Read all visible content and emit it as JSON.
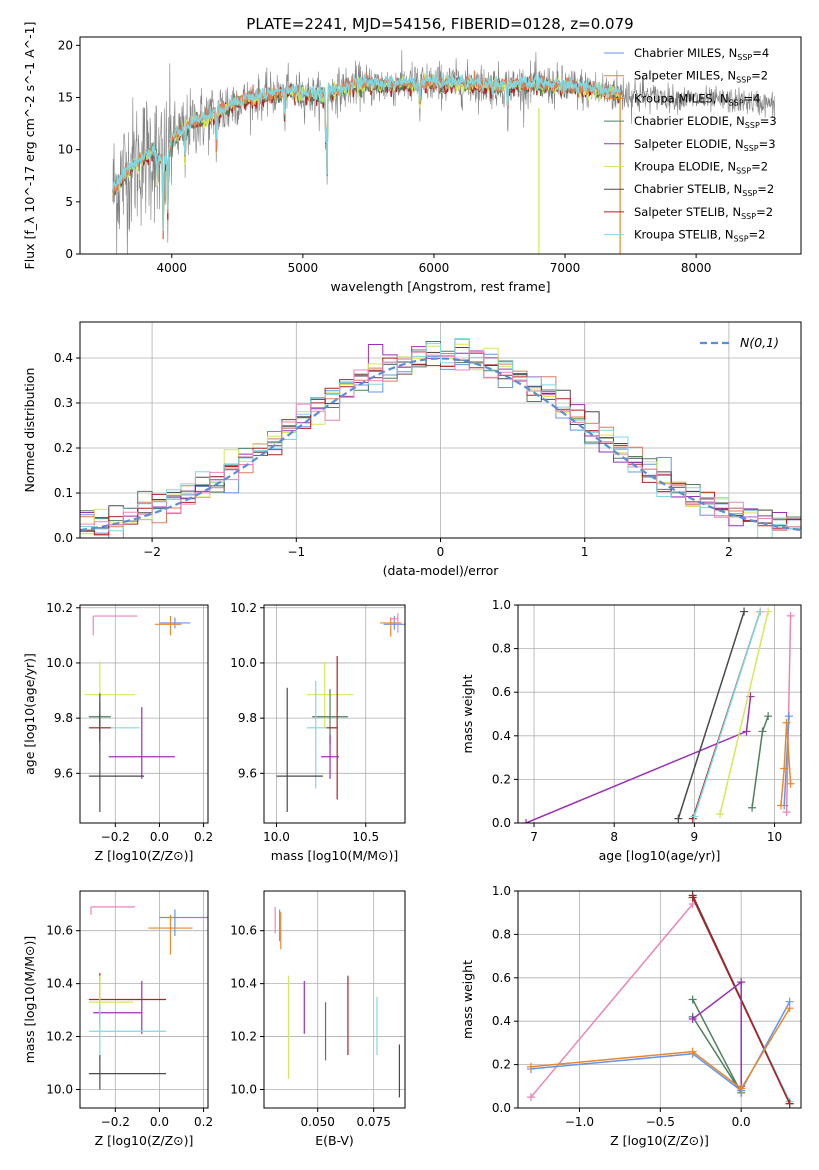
{
  "figure_title": "PLATE=2241, MJD=54156, FIBERID=0128, z=0.079",
  "colors": {
    "Chabrier MILES": "#6495ed",
    "Salpeter MILES": "#e07b5a",
    "Kroupa MILES": "#e8882a",
    "Chabrier ELODIE": "#4f7f5f",
    "Salpeter ELODIE": "#9b30b5",
    "Kroupa ELODIE": "#d4e85a",
    "Chabrier STELIB": "#4a4a4a",
    "Salpeter STELIB": "#b22222",
    "Kroupa STELIB": "#7fd8e0",
    "Pink": "#e986b8",
    "Data": "#808080"
  },
  "chart_data": [
    {
      "id": "spectrum",
      "type": "line",
      "title": "PLATE=2241, MJD=54156, FIBERID=0128, z=0.079",
      "xlabel": "wavelength [Angstrom, rest frame]",
      "ylabel": "Flux [f_λ 10^-17 erg cm^-2 s^-1 A^-1]",
      "xlim": [
        3300,
        8800
      ],
      "ylim": [
        0,
        20.8
      ],
      "xticks": [
        4000,
        5000,
        6000,
        7000,
        8000
      ],
      "yticks": [
        0,
        5,
        10,
        15,
        20
      ],
      "grid": false,
      "legend_position": "right",
      "legend": [
        {
          "name": "Chabrier MILES",
          "label": "Chabrier MILES, N",
          "sub": "SSP",
          "suffix": "=4"
        },
        {
          "name": "Salpeter MILES",
          "label": "Salpeter MILES, N",
          "sub": "SSP",
          "suffix": "=2"
        },
        {
          "name": "Kroupa MILES",
          "label": "Kroupa MILES, N",
          "sub": "SSP",
          "suffix": "=4"
        },
        {
          "name": "Chabrier ELODIE",
          "label": "Chabrier ELODIE, N",
          "sub": "SSP",
          "suffix": "=3"
        },
        {
          "name": "Salpeter ELODIE",
          "label": "Salpeter ELODIE, N",
          "sub": "SSP",
          "suffix": "=3"
        },
        {
          "name": "Kroupa ELODIE",
          "label": "Kroupa ELODIE, N",
          "sub": "SSP",
          "suffix": "=2"
        },
        {
          "name": "Chabrier STELIB",
          "label": "Chabrier STELIB, N",
          "sub": "SSP",
          "suffix": "=2"
        },
        {
          "name": "Salpeter STELIB",
          "label": "Salpeter STELIB, N",
          "sub": "SSP",
          "suffix": "=2"
        },
        {
          "name": "Kroupa STELIB",
          "label": "Kroupa STELIB, N",
          "sub": "SSP",
          "suffix": "=2"
        }
      ],
      "continuum": [
        [
          3550,
          6
        ],
        [
          3700,
          8.5
        ],
        [
          3850,
          9.8
        ],
        [
          3950,
          8.6
        ],
        [
          4000,
          11
        ],
        [
          4150,
          12.5
        ],
        [
          4300,
          13.2
        ],
        [
          4500,
          14.6
        ],
        [
          4700,
          15.1
        ],
        [
          4900,
          15.6
        ],
        [
          5100,
          15.1
        ],
        [
          5200,
          15.4
        ],
        [
          5400,
          16.2
        ],
        [
          5600,
          16.2
        ],
        [
          5800,
          16.3
        ],
        [
          6000,
          16.4
        ],
        [
          6200,
          16.3
        ],
        [
          6500,
          16.1
        ],
        [
          6800,
          16.2
        ],
        [
          7000,
          16
        ],
        [
          7300,
          15.6
        ],
        [
          7600,
          15.2
        ],
        [
          8000,
          14.8
        ],
        [
          8400,
          14.6
        ],
        [
          8600,
          14.3
        ]
      ],
      "data_range": [
        3550,
        8600
      ],
      "model_range": [
        3550,
        7420
      ]
    },
    {
      "id": "residuals",
      "type": "histogram",
      "xlabel": "(data-model)/error",
      "ylabel": "Normed distribution",
      "xlim": [
        -2.5,
        2.5
      ],
      "ylim": [
        0,
        0.48
      ],
      "xticks": [
        -2,
        -1,
        0,
        1,
        2
      ],
      "yticks": [
        0,
        0.1,
        0.2,
        0.3,
        0.4
      ],
      "grid": true,
      "legend_position": "top-right",
      "reference_curve": "N(0,1)",
      "bin_width": 0.1
    },
    {
      "id": "age_vs_z",
      "type": "errorbar",
      "xlabel": "Z [log10(Z/Z⊙)]",
      "ylabel": "age [log10(age/yr)]",
      "xlim": [
        -0.36,
        0.22
      ],
      "ylim": [
        9.42,
        10.21
      ],
      "xticks": [
        -0.2,
        0.0,
        0.2
      ],
      "yticks": [
        9.6,
        9.8,
        10.0,
        10.2
      ],
      "grid": true,
      "points": [
        {
          "model": "Chabrier MILES",
          "x": 0.07,
          "y": 10.145,
          "xerr": [
            0.07,
            0.07
          ],
          "yerr": [
            0.02,
            0.02
          ]
        },
        {
          "model": "Kroupa MILES",
          "x": 0.05,
          "y": 10.14,
          "xerr": [
            0.07,
            0.05
          ],
          "yerr": [
            0.04,
            0.03
          ]
        },
        {
          "model": "Pink",
          "x": -0.3,
          "y": 10.17,
          "xerr": [
            0,
            0.2
          ],
          "yerr": [
            0.07,
            0
          ]
        },
        {
          "model": "Kroupa ELODIE",
          "x": -0.27,
          "y": 9.885,
          "xerr": [
            0.07,
            0.16
          ],
          "yerr": [
            0.12,
            0.12
          ]
        },
        {
          "model": "Chabrier ELODIE",
          "x": -0.27,
          "y": 9.805,
          "xerr": [
            0.05,
            0.05
          ],
          "yerr": [
            0.05,
            0.05
          ]
        },
        {
          "model": "Kroupa STELIB",
          "x": -0.27,
          "y": 9.765,
          "xerr": [
            0.05,
            0.18
          ],
          "yerr": [
            0.05,
            0.05
          ]
        },
        {
          "model": "Salpeter STELIB",
          "x": -0.27,
          "y": 9.765,
          "xerr": [
            0.05,
            0.05
          ],
          "yerr": [
            0.05,
            0.05
          ]
        },
        {
          "model": "Salpeter ELODIE",
          "x": -0.08,
          "y": 9.66,
          "xerr": [
            0.15,
            0.15
          ],
          "yerr": [
            0.08,
            0.18
          ]
        },
        {
          "model": "Chabrier STELIB",
          "x": -0.27,
          "y": 9.59,
          "xerr": [
            0.05,
            0.2
          ],
          "yerr": [
            0.13,
            0.3
          ]
        }
      ]
    },
    {
      "id": "age_vs_mass",
      "type": "errorbar",
      "xlabel": "mass [log10(M/M⊙)]",
      "ylabel": "",
      "xlim": [
        9.93,
        10.72
      ],
      "ylim": [
        9.42,
        10.21
      ],
      "xticks": [
        10.0,
        10.5
      ],
      "yticks": [
        9.6,
        9.8,
        10.0,
        10.2
      ],
      "grid": true,
      "points": [
        {
          "model": "Chabrier MILES",
          "x": 10.66,
          "y": 10.14,
          "xerr": [
            0.06,
            0.06
          ],
          "yerr": [
            0.02,
            0.03
          ]
        },
        {
          "model": "Kroupa MILES",
          "x": 10.64,
          "y": 10.145,
          "xerr": [
            0.06,
            0.06
          ],
          "yerr": [
            0.05,
            0.02
          ]
        },
        {
          "model": "Pink",
          "x": 10.68,
          "y": 10.16,
          "xerr": [
            0.04,
            0.0
          ],
          "yerr": [
            0.05,
            0.02
          ]
        },
        {
          "model": "Kroupa ELODIE",
          "x": 10.27,
          "y": 9.885,
          "xerr": [
            0.1,
            0.16
          ],
          "yerr": [
            0.12,
            0.12
          ]
        },
        {
          "model": "Chabrier ELODIE",
          "x": 10.3,
          "y": 9.805,
          "xerr": [
            0.1,
            0.1
          ],
          "yerr": [
            0.1,
            0.1
          ]
        },
        {
          "model": "Kroupa STELIB",
          "x": 10.22,
          "y": 9.765,
          "xerr": [
            0.05,
            0.11
          ],
          "yerr": [
            0.22,
            0.17
          ]
        },
        {
          "model": "Salpeter STELIB",
          "x": 10.34,
          "y": 9.765,
          "xerr": [
            0.06,
            0.0
          ],
          "yerr": [
            0.26,
            0.26
          ]
        },
        {
          "model": "Salpeter ELODIE",
          "x": 10.3,
          "y": 9.66,
          "xerr": [
            0.05,
            0.05
          ],
          "yerr": [
            0.08,
            0.08
          ]
        },
        {
          "model": "Chabrier STELIB",
          "x": 10.06,
          "y": 9.59,
          "xerr": [
            0.06,
            0.2
          ],
          "yerr": [
            0.13,
            0.32
          ]
        }
      ]
    },
    {
      "id": "mass_weight_vs_age",
      "type": "line",
      "xlabel": "age [log10(age/yr)]",
      "ylabel": "mass weight",
      "xlim": [
        6.8,
        10.33
      ],
      "ylim": [
        0,
        1.0
      ],
      "xticks": [
        7,
        8,
        9,
        10
      ],
      "yticks": [
        0.0,
        0.2,
        0.4,
        0.6,
        0.8,
        1.0
      ],
      "grid": true,
      "series": [
        {
          "model": "Salpeter ELODIE",
          "points": [
            [
              6.9,
              0.0
            ],
            [
              9.65,
              0.42
            ],
            [
              9.7,
              0.58
            ]
          ]
        },
        {
          "model": "Chabrier STELIB",
          "points": [
            [
              8.8,
              0.02
            ],
            [
              9.62,
              0.97
            ]
          ]
        },
        {
          "model": "Salpeter STELIB",
          "points": [
            [
              8.98,
              0.02
            ],
            [
              9.82,
              0.97
            ]
          ]
        },
        {
          "model": "Kroupa STELIB",
          "points": [
            [
              9.0,
              0.03
            ],
            [
              9.82,
              0.97
            ]
          ]
        },
        {
          "model": "Kroupa ELODIE",
          "points": [
            [
              9.32,
              0.04
            ],
            [
              9.92,
              0.97
            ]
          ]
        },
        {
          "model": "Chabrier ELODIE",
          "points": [
            [
              9.72,
              0.07
            ],
            [
              9.85,
              0.42
            ],
            [
              9.92,
              0.49
            ]
          ]
        },
        {
          "model": "Pink",
          "points": [
            [
              10.15,
              0.05
            ],
            [
              10.2,
              0.95
            ]
          ]
        },
        {
          "model": "Chabrier MILES",
          "points": [
            [
              10.12,
              0.08
            ],
            [
              10.18,
              0.49
            ]
          ]
        },
        {
          "model": "Kroupa MILES",
          "points": [
            [
              10.08,
              0.08
            ],
            [
              10.12,
              0.25
            ],
            [
              10.15,
              0.46
            ],
            [
              10.2,
              0.18
            ]
          ]
        }
      ]
    },
    {
      "id": "mass_vs_z",
      "type": "errorbar",
      "xlabel": "Z [log10(Z/Z⊙)]",
      "ylabel": "mass [log10(M/M⊙)]",
      "xlim": [
        -0.36,
        0.22
      ],
      "ylim": [
        9.93,
        10.75
      ],
      "xticks": [
        -0.2,
        0.0,
        0.2
      ],
      "yticks": [
        10.0,
        10.2,
        10.4,
        10.6
      ],
      "grid": true,
      "points": [
        {
          "model": "Pink",
          "x": -0.31,
          "y": 10.69,
          "xerr": [
            0.0,
            0.2
          ],
          "yerr": [
            0.03,
            0.0
          ]
        },
        {
          "model": "Chabrier MILES",
          "x": 0.07,
          "y": 10.65,
          "xerr": [
            0.07,
            0.15
          ],
          "yerr": [
            0.07,
            0.03
          ]
        },
        {
          "model": "Kroupa MILES",
          "x": 0.05,
          "y": 10.61,
          "xerr": [
            0.1,
            0.1
          ],
          "yerr": [
            0.1,
            0.05
          ]
        },
        {
          "model": "Salpeter ELODIE",
          "x": -0.08,
          "y": 10.29,
          "xerr": [
            0.22,
            0.0
          ],
          "yerr": [
            0.08,
            0.12
          ]
        },
        {
          "model": "Salpeter STELIB",
          "x": -0.27,
          "y": 10.34,
          "xerr": [
            0.05,
            0.3
          ],
          "yerr": [
            0.1,
            0.1
          ]
        },
        {
          "model": "Kroupa ELODIE",
          "x": -0.27,
          "y": 10.33,
          "xerr": [
            0.05,
            0.15
          ],
          "yerr": [
            0.1,
            0.1
          ]
        },
        {
          "model": "Kroupa STELIB",
          "x": -0.27,
          "y": 10.22,
          "xerr": [
            0.05,
            0.3
          ],
          "yerr": [
            0.1,
            0.1
          ]
        },
        {
          "model": "Chabrier STELIB",
          "x": -0.27,
          "y": 10.06,
          "xerr": [
            0.05,
            0.3
          ],
          "yerr": [
            0.06,
            0.07
          ]
        }
      ]
    },
    {
      "id": "mass_vs_ebv",
      "type": "errorbar",
      "xlabel": "E(B-V)",
      "ylabel": "",
      "xlim": [
        0.026,
        0.089
      ],
      "ylim": [
        9.93,
        10.75
      ],
      "xticks": [
        0.05,
        0.075
      ],
      "yticks": [
        10.0,
        10.2,
        10.4,
        10.6
      ],
      "grid": true,
      "points": [
        {
          "model": "Pink",
          "x": 0.031,
          "y": 10.64,
          "xerr": [
            0,
            0
          ],
          "yerr": [
            0.05,
            0.05
          ]
        },
        {
          "model": "Chabrier MILES",
          "x": 0.033,
          "y": 10.62,
          "xerr": [
            0,
            0
          ],
          "yerr": [
            0.06,
            0.06
          ]
        },
        {
          "model": "Kroupa MILES",
          "x": 0.0335,
          "y": 10.6,
          "xerr": [
            0,
            0
          ],
          "yerr": [
            0.07,
            0.07
          ]
        },
        {
          "model": "Kroupa ELODIE",
          "x": 0.037,
          "y": 10.23,
          "xerr": [
            0,
            0
          ],
          "yerr": [
            0.19,
            0.2
          ]
        },
        {
          "model": "Salpeter ELODIE",
          "x": 0.044,
          "y": 10.31,
          "xerr": [
            0,
            0
          ],
          "yerr": [
            0.1,
            0.1
          ]
        },
        {
          "model": "Chabrier ELODIE",
          "x": 0.0535,
          "y": 10.22,
          "xerr": [
            0,
            0
          ],
          "yerr": [
            0.11,
            0.11
          ]
        },
        {
          "model": "Salpeter STELIB",
          "x": 0.0635,
          "y": 10.28,
          "xerr": [
            0,
            0
          ],
          "yerr": [
            0.15,
            0.15
          ]
        },
        {
          "model": "Kroupa STELIB",
          "x": 0.0765,
          "y": 10.24,
          "xerr": [
            0,
            0
          ],
          "yerr": [
            0.11,
            0.11
          ]
        },
        {
          "model": "Chabrier STELIB",
          "x": 0.0865,
          "y": 10.05,
          "xerr": [
            0,
            0
          ],
          "yerr": [
            0.08,
            0.12
          ]
        }
      ]
    },
    {
      "id": "mass_weight_vs_z",
      "type": "line",
      "xlabel": "Z [log10(Z/Z⊙)]",
      "ylabel": "mass weight",
      "xlim": [
        -1.38,
        0.37
      ],
      "ylim": [
        0,
        1.0
      ],
      "xticks": [
        -1.0,
        -0.5,
        0.0
      ],
      "yticks": [
        0.0,
        0.2,
        0.4,
        0.6,
        0.8,
        1.0
      ],
      "grid": true,
      "series": [
        {
          "model": "Pink",
          "points": [
            [
              -1.3,
              0.05
            ],
            [
              -0.3,
              0.94
            ]
          ]
        },
        {
          "model": "Kroupa STELIB",
          "points": [
            [
              -0.3,
              0.97
            ],
            [
              0.3,
              0.03
            ]
          ]
        },
        {
          "model": "Chabrier STELIB",
          "points": [
            [
              -0.3,
              0.98
            ],
            [
              0.3,
              0.02
            ]
          ]
        },
        {
          "model": "Salpeter STELIB",
          "points": [
            [
              -0.3,
              0.97
            ],
            [
              0.3,
              0.02
            ]
          ]
        },
        {
          "model": "Chabrier ELODIE",
          "points": [
            [
              -0.3,
              0.5
            ],
            [
              0.0,
              0.07
            ],
            [
              -0.3,
              0.42
            ]
          ]
        },
        {
          "model": "Salpeter ELODIE",
          "points": [
            [
              -0.3,
              0.41
            ],
            [
              0.0,
              0.58
            ],
            [
              0.0,
              0.1
            ]
          ]
        },
        {
          "model": "Chabrier MILES",
          "points": [
            [
              -1.3,
              0.18
            ],
            [
              -0.3,
              0.25
            ],
            [
              0.0,
              0.08
            ],
            [
              0.3,
              0.49
            ]
          ]
        },
        {
          "model": "Kroupa MILES",
          "points": [
            [
              -1.3,
              0.19
            ],
            [
              -0.3,
              0.26
            ],
            [
              0.0,
              0.09
            ],
            [
              0.3,
              0.46
            ]
          ]
        }
      ]
    }
  ]
}
